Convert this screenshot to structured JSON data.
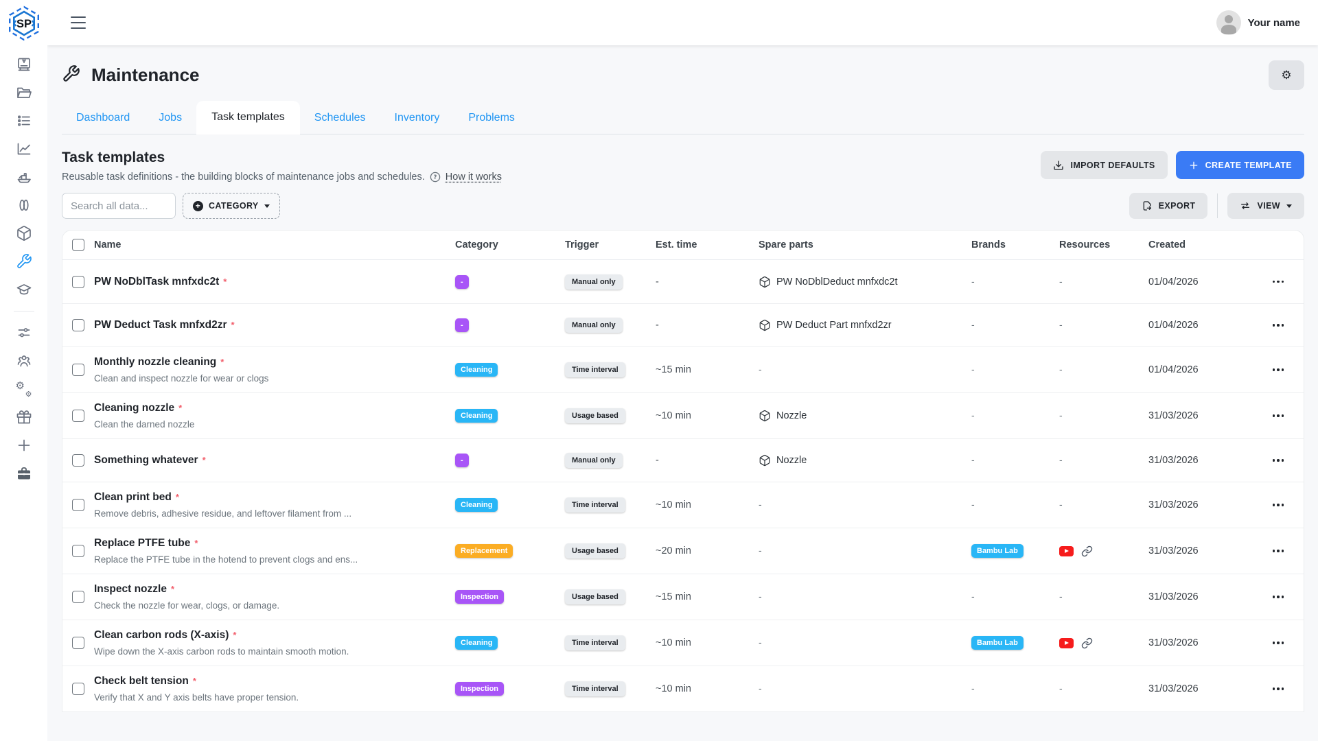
{
  "app": {
    "logo_text": "SP",
    "user_name": "Your name"
  },
  "sidebar": {
    "icons": [
      "3d-printer",
      "folder",
      "list",
      "line-chart",
      "benchy-boat",
      "filament",
      "cube",
      "wrench",
      "graduation-cap",
      "sliders",
      "users",
      "gears",
      "gift",
      "plus",
      "toolbox"
    ],
    "active_icon": "wrench"
  },
  "page": {
    "title": "Maintenance",
    "tabs": [
      {
        "label": "Dashboard",
        "active": false
      },
      {
        "label": "Jobs",
        "active": false
      },
      {
        "label": "Task templates",
        "active": true
      },
      {
        "label": "Schedules",
        "active": false
      },
      {
        "label": "Inventory",
        "active": false
      },
      {
        "label": "Problems",
        "active": false
      }
    ],
    "section": {
      "title": "Task templates",
      "description": "Reusable task definitions - the building blocks of maintenance jobs and schedules.",
      "help_link": "How it works",
      "import_button": "IMPORT DEFAULTS",
      "create_button": "CREATE TEMPLATE",
      "search_placeholder": "Search all data...",
      "category_button": "CATEGORY",
      "export_button": "EXPORT",
      "view_button": "VIEW"
    },
    "table": {
      "columns": [
        "Name",
        "Category",
        "Trigger",
        "Est. time",
        "Spare parts",
        "Brands",
        "Resources",
        "Created"
      ],
      "category_colors": {
        "Cleaning": "#29b6f6",
        "Replacement": "#fbad24",
        "Inspection": "#a855f7",
        "-": "#a855f7"
      },
      "brand_color": "#29b6f6",
      "rows": [
        {
          "name": "PW NoDblTask mnfxdc2t",
          "subtitle": "",
          "category": "-",
          "trigger": "Manual only",
          "est_time": "-",
          "spare_part": "PW NoDblDeduct mnfxdc2t",
          "brand": "",
          "resources": [],
          "created": "01/04/2026"
        },
        {
          "name": "PW Deduct Task mnfxd2zr",
          "subtitle": "",
          "category": "-",
          "trigger": "Manual only",
          "est_time": "-",
          "spare_part": "PW Deduct Part mnfxd2zr",
          "brand": "",
          "resources": [],
          "created": "01/04/2026"
        },
        {
          "name": "Monthly nozzle cleaning",
          "subtitle": "Clean and inspect nozzle for wear or clogs",
          "category": "Cleaning",
          "trigger": "Time interval",
          "est_time": "~15 min",
          "spare_part": "-",
          "brand": "",
          "resources": [],
          "created": "01/04/2026"
        },
        {
          "name": "Cleaning nozzle",
          "subtitle": "Clean the darned nozzle",
          "category": "Cleaning",
          "trigger": "Usage based",
          "est_time": "~10 min",
          "spare_part": "Nozzle",
          "brand": "",
          "resources": [],
          "created": "31/03/2026"
        },
        {
          "name": "Something whatever",
          "subtitle": "",
          "category": "-",
          "trigger": "Manual only",
          "est_time": "-",
          "spare_part": "Nozzle",
          "brand": "",
          "resources": [],
          "created": "31/03/2026"
        },
        {
          "name": "Clean print bed",
          "subtitle": "Remove debris, adhesive residue, and leftover filament from ...",
          "category": "Cleaning",
          "trigger": "Time interval",
          "est_time": "~10 min",
          "spare_part": "-",
          "brand": "",
          "resources": [],
          "created": "31/03/2026"
        },
        {
          "name": "Replace PTFE tube",
          "subtitle": "Replace the PTFE tube in the hotend to prevent clogs and ens...",
          "category": "Replacement",
          "trigger": "Usage based",
          "est_time": "~20 min",
          "spare_part": "-",
          "brand": "Bambu Lab",
          "resources": [
            "youtube",
            "link"
          ],
          "created": "31/03/2026"
        },
        {
          "name": "Inspect nozzle",
          "subtitle": "Check the nozzle for wear, clogs, or damage.",
          "category": "Inspection",
          "trigger": "Usage based",
          "est_time": "~15 min",
          "spare_part": "-",
          "brand": "",
          "resources": [],
          "created": "31/03/2026"
        },
        {
          "name": "Clean carbon rods (X-axis)",
          "subtitle": "Wipe down the X-axis carbon rods to maintain smooth motion.",
          "category": "Cleaning",
          "trigger": "Time interval",
          "est_time": "~10 min",
          "spare_part": "-",
          "brand": "Bambu Lab",
          "resources": [
            "youtube",
            "link"
          ],
          "created": "31/03/2026"
        },
        {
          "name": "Check belt tension",
          "subtitle": "Verify that X and Y axis belts have proper tension.",
          "category": "Inspection",
          "trigger": "Time interval",
          "est_time": "~10 min",
          "spare_part": "-",
          "brand": "",
          "resources": [],
          "created": "31/03/2026"
        }
      ]
    }
  },
  "colors": {
    "accent_blue": "#2196f3",
    "create_button_blue": "#3a7bf5",
    "youtube_red": "#f61c1c"
  }
}
